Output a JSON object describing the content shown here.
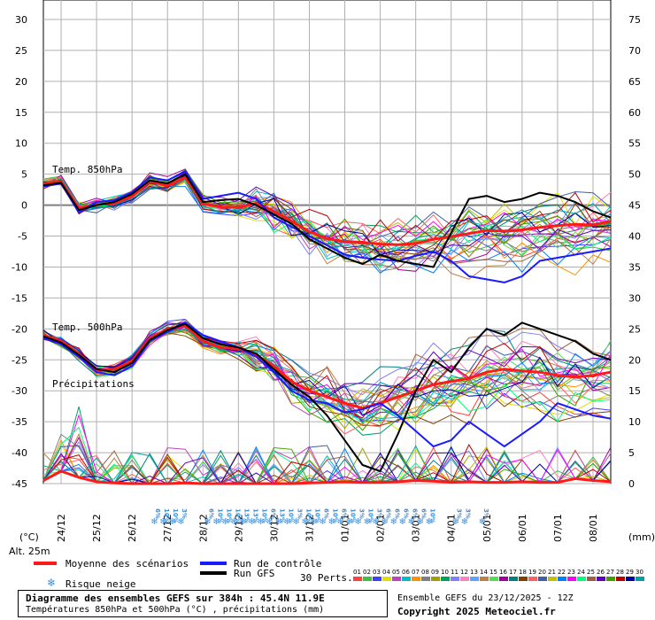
{
  "chart_data": {
    "type": "line",
    "title": "Diagramme des ensembles GEFS sur 384h : 45.4N 11.9E",
    "subtitle": "Températures 850hPa et 500hPa (°C) , précipitations (mm)",
    "left_axis_unit": "(°C)",
    "right_axis_unit": "(mm)",
    "altitude": "Alt. 25m",
    "left_ticks": [
      30,
      25,
      20,
      15,
      10,
      5,
      0,
      -5,
      -10,
      -15,
      -20,
      -25,
      -30,
      -35,
      -40,
      -45
    ],
    "right_ticks": [
      75,
      70,
      65,
      60,
      55,
      50,
      45,
      40,
      35,
      30,
      25,
      20,
      15,
      10,
      5,
      0
    ],
    "ylim": [
      -45,
      30
    ],
    "x_unit_hours": "0 = 23/12 12Z",
    "date_labels": [
      "24/12",
      "25/12",
      "26/12",
      "27/12",
      "28/12",
      "29/12",
      "30/12",
      "31/12",
      "01/01",
      "02/01",
      "03/01",
      "04/01",
      "05/01",
      "06/01",
      "07/01",
      "08/01"
    ],
    "panels": {
      "t850": "Temp. 850hPa",
      "t500": "Temp. 500hPa",
      "precip": "Précipitations"
    },
    "series": [
      {
        "name": "Moyenne des scénarios",
        "panel": "t850",
        "color": "#ff1a1a",
        "x": [
          0,
          12,
          24,
          36,
          48,
          60,
          72,
          84,
          96,
          108,
          120,
          132,
          144,
          156,
          168,
          180,
          192,
          204,
          216,
          228,
          240,
          252,
          264,
          276,
          288,
          300,
          312,
          324,
          336,
          348,
          360,
          372,
          384
        ],
        "values": [
          3.5,
          3.8,
          -0.5,
          0.1,
          0.3,
          1.4,
          3.9,
          3.1,
          4.5,
          0.2,
          -0.3,
          -0.4,
          0.3,
          -1.0,
          -2.6,
          -4.3,
          -5.4,
          -5.9,
          -6.0,
          -6.3,
          -6.4,
          -6.2,
          -5.5,
          -5.1,
          -4.6,
          -4.1,
          -4.2,
          -4.0,
          -3.6,
          -3.3,
          -3.1,
          -3.2,
          -2.6
        ]
      },
      {
        "name": "Run de contrôle",
        "panel": "t850",
        "color": "#1a1aff",
        "x": [
          0,
          12,
          24,
          36,
          48,
          60,
          72,
          84,
          96,
          108,
          120,
          132,
          144,
          156,
          168,
          180,
          192,
          204,
          216,
          228,
          240,
          252,
          264,
          276,
          288,
          300,
          312,
          324,
          336,
          348,
          360,
          372,
          384
        ],
        "values": [
          3.0,
          3.5,
          -1.2,
          0.5,
          0.8,
          2.1,
          4.5,
          4.0,
          5.5,
          1.0,
          1.5,
          2.0,
          1.0,
          -2.0,
          -3.5,
          -5.0,
          -6.5,
          -8.0,
          -8.5,
          -8.8,
          -9.0,
          -8.2,
          -7.5,
          -9.0,
          -11.5,
          -12.0,
          -12.5,
          -11.5,
          -9.0,
          -8.5,
          -8.0,
          -7.5,
          -7.0
        ]
      },
      {
        "name": "Run GFS",
        "panel": "t850",
        "color": "#000000",
        "x": [
          0,
          12,
          24,
          36,
          48,
          60,
          72,
          84,
          96,
          108,
          120,
          132,
          144,
          156,
          168,
          180,
          192,
          204,
          216,
          228,
          240,
          252,
          264,
          276,
          288,
          300,
          312,
          324,
          336,
          348,
          360,
          372,
          384
        ],
        "values": [
          3.2,
          3.6,
          -0.8,
          0.0,
          0.5,
          1.8,
          4.0,
          3.5,
          5.0,
          0.5,
          0.8,
          1.0,
          0.0,
          -1.5,
          -3.0,
          -5.5,
          -7.0,
          -8.5,
          -9.5,
          -8.0,
          -9.0,
          -9.5,
          -10.0,
          -4.5,
          1.0,
          1.5,
          0.5,
          1.0,
          2.0,
          1.5,
          0.5,
          -1.0,
          -2.0
        ]
      },
      {
        "name": "Moyenne des scénarios",
        "panel": "t500",
        "color": "#ff1a1a",
        "x": [
          0,
          12,
          24,
          36,
          48,
          60,
          72,
          84,
          96,
          108,
          120,
          132,
          144,
          156,
          168,
          180,
          192,
          204,
          216,
          228,
          240,
          252,
          264,
          276,
          288,
          300,
          312,
          324,
          336,
          348,
          360,
          372,
          384
        ],
        "values": [
          -21.0,
          -22.0,
          -24.0,
          -26.8,
          -26.5,
          -25.2,
          -21.5,
          -20.0,
          -19.5,
          -22.0,
          -23.0,
          -23.2,
          -24.2,
          -26.0,
          -28.5,
          -30.0,
          -31.0,
          -32.0,
          -32.8,
          -32.0,
          -31.0,
          -30.0,
          -29.0,
          -28.5,
          -28.0,
          -27.0,
          -26.5,
          -26.8,
          -27.0,
          -27.5,
          -27.8,
          -27.5,
          -27.0
        ]
      },
      {
        "name": "Run de contrôle",
        "panel": "t500",
        "color": "#1a1aff",
        "x": [
          0,
          12,
          24,
          36,
          48,
          60,
          72,
          84,
          96,
          108,
          120,
          132,
          144,
          156,
          168,
          180,
          192,
          204,
          216,
          228,
          240,
          252,
          264,
          276,
          288,
          300,
          312,
          324,
          336,
          348,
          360,
          372,
          384
        ],
        "values": [
          -21.5,
          -22.5,
          -24.5,
          -27.0,
          -27.5,
          -26.0,
          -22.0,
          -20.5,
          -19.0,
          -21.0,
          -22.0,
          -23.0,
          -24.5,
          -27.0,
          -30.0,
          -31.5,
          -32.0,
          -33.5,
          -33.0,
          -32.0,
          -34.0,
          -36.5,
          -39.0,
          -38.0,
          -35.0,
          -37.0,
          -39.0,
          -37.0,
          -35.0,
          -32.0,
          -33.0,
          -34.0,
          -34.5
        ]
      },
      {
        "name": "Run GFS",
        "panel": "t500",
        "color": "#000000",
        "x": [
          0,
          12,
          24,
          36,
          48,
          60,
          72,
          84,
          96,
          108,
          120,
          132,
          144,
          156,
          168,
          180,
          192,
          204,
          216,
          228,
          240,
          252,
          264,
          276,
          288,
          300,
          312,
          324,
          336,
          348,
          360,
          372,
          384
        ],
        "values": [
          -21.2,
          -22.2,
          -24.2,
          -26.5,
          -27.0,
          -25.5,
          -21.8,
          -20.2,
          -19.2,
          -21.5,
          -22.5,
          -23.0,
          -24.0,
          -26.5,
          -29.0,
          -31.0,
          -34.0,
          -38.0,
          -42.0,
          -43.0,
          -37.0,
          -30.0,
          -25.0,
          -27.0,
          -23.0,
          -20.0,
          -21.0,
          -19.0,
          -20.0,
          -21.0,
          -22.0,
          -24.0,
          -25.0
        ]
      },
      {
        "name": "Moyenne des scénarios",
        "panel": "precip",
        "color": "#ff1a1a",
        "x": [
          0,
          12,
          24,
          36,
          48,
          60,
          72,
          84,
          96,
          108,
          120,
          132,
          144,
          156,
          168,
          180,
          192,
          204,
          216,
          228,
          240,
          252,
          264,
          276,
          288,
          300,
          312,
          324,
          336,
          348,
          360,
          372,
          384
        ],
        "values_mm": [
          0.5,
          2.0,
          1.0,
          0.3,
          0.1,
          0.0,
          0.0,
          0.0,
          0.1,
          0.0,
          0.0,
          0.0,
          0.0,
          0.0,
          0.0,
          0.1,
          0.2,
          0.3,
          0.2,
          0.2,
          0.3,
          0.5,
          0.4,
          0.2,
          0.3,
          0.2,
          0.2,
          0.3,
          0.2,
          0.2,
          0.8,
          0.5,
          0.3
        ]
      }
    ],
    "risque_neige": [
      {
        "x": 12.5,
        "pct": "6%"
      },
      {
        "x": 13.5,
        "pct": "10%"
      },
      {
        "x": 14.5,
        "pct": "10%"
      },
      {
        "x": 15.5,
        "pct": "3%"
      },
      {
        "x": 18.5,
        "pct": "6%"
      },
      {
        "x": 19.5,
        "pct": "10%"
      },
      {
        "x": 20.5,
        "pct": "10%"
      },
      {
        "x": 21.5,
        "pct": "10%"
      },
      {
        "x": 22.5,
        "pct": "13%"
      },
      {
        "x": 23.5,
        "pct": "13%"
      },
      {
        "x": 24.5,
        "pct": "10%"
      },
      {
        "x": 25.5,
        "pct": "6%"
      },
      {
        "x": 26.5,
        "pct": "13%"
      },
      {
        "x": 27.5,
        "pct": "10%"
      },
      {
        "x": 28.5,
        "pct": "3%"
      },
      {
        "x": 29.5,
        "pct": "10%"
      },
      {
        "x": 30.5,
        "pct": "10%"
      },
      {
        "x": 31.5,
        "pct": "6%"
      },
      {
        "x": 32.5,
        "pct": "10%"
      },
      {
        "x": 33.5,
        "pct": "6%"
      },
      {
        "x": 34.5,
        "pct": "10%"
      },
      {
        "x": 35.5,
        "pct": "3%"
      },
      {
        "x": 36.5,
        "pct": "10%"
      },
      {
        "x": 37.5,
        "pct": "3%"
      },
      {
        "x": 38.5,
        "pct": "6%"
      },
      {
        "x": 39.5,
        "pct": "6%"
      },
      {
        "x": 40.5,
        "pct": "6%"
      },
      {
        "x": 41.5,
        "pct": "6%"
      },
      {
        "x": 42.5,
        "pct": "6%"
      },
      {
        "x": 43.5,
        "pct": "10%"
      },
      {
        "x": 46.5,
        "pct": "3%"
      },
      {
        "x": 47.5,
        "pct": "3%"
      },
      {
        "x": 49.5,
        "pct": "3%"
      }
    ],
    "legend": {
      "mean": "Moyenne des scénarios",
      "control": "Run de contrôle",
      "gfs": "Run GFS",
      "snow": "Risque neige",
      "perts": "30 Perts.",
      "pert_ids": [
        "01",
        "02",
        "03",
        "04",
        "05",
        "06",
        "07",
        "08",
        "09",
        "10",
        "11",
        "12",
        "13",
        "14",
        "15",
        "16",
        "17",
        "18",
        "19",
        "20",
        "21",
        "22",
        "23",
        "24",
        "25",
        "26",
        "27",
        "28",
        "29",
        "30"
      ],
      "pert_colors": [
        "#ff4040",
        "#40c040",
        "#4040ff",
        "#e0e000",
        "#c040c0",
        "#00c0c0",
        "#ff9000",
        "#808080",
        "#a0a000",
        "#00a060",
        "#8080ff",
        "#ff80c0",
        "#60a0ff",
        "#c08040",
        "#50e050",
        "#a000a0",
        "#008080",
        "#804000",
        "#ff6060",
        "#4060a0",
        "#c0c000",
        "#0080ff",
        "#ff00ff",
        "#00ff80",
        "#a06040",
        "#6000c0",
        "#40a000",
        "#c00000",
        "#0000a0",
        "#00a0a0"
      ]
    },
    "grid": true
  },
  "footer": {
    "title": "Diagramme des ensembles GEFS sur 384h : 45.4N 11.9E",
    "subtitle": "Températures 850hPa et 500hPa (°C) , précipitations (mm)",
    "run": "Ensemble GEFS du 23/12/2025 - 12Z",
    "copyright": "Copyright 2025 Meteociel.fr"
  },
  "colors": {
    "grid": "#b0b0b0",
    "zero_line": "#808080",
    "snow": "#3f8fd8"
  }
}
